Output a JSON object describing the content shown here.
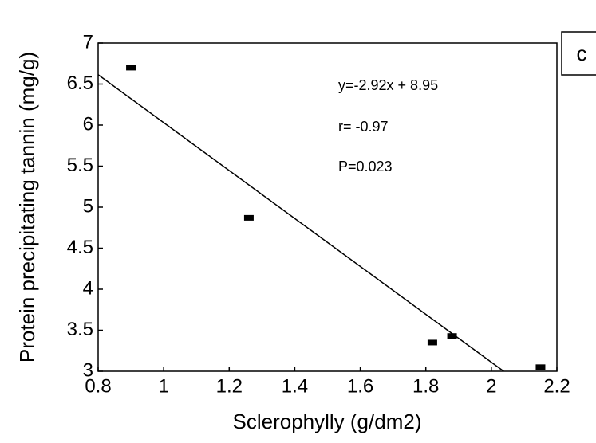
{
  "chart_data": {
    "type": "scatter",
    "panel_label": "c",
    "x_label": "Sclerophylly (g/dm2)",
    "y_label": "Protein precipitating tannin (mg/g)",
    "annotations": [
      "y=-2.92x + 8.95",
      "r= -0.97",
      "P=0.023"
    ],
    "series": [
      {
        "color": "#000000",
        "x": [
          0.9,
          1.26,
          1.82,
          1.88,
          2.15
        ],
        "values": [
          6.7,
          4.87,
          3.35,
          3.43,
          3.05
        ]
      }
    ],
    "trendline": {
      "slope": -2.92,
      "intercept": 8.95
    },
    "xlim": [
      0.8,
      2.2
    ],
    "xticks": [
      0.8,
      1,
      1.2,
      1.4,
      1.6,
      1.8,
      2,
      2.2
    ],
    "ylim": [
      3,
      7
    ],
    "yticks": [
      3,
      3.5,
      4,
      4.5,
      5,
      5.5,
      6,
      6.5,
      7
    ]
  }
}
